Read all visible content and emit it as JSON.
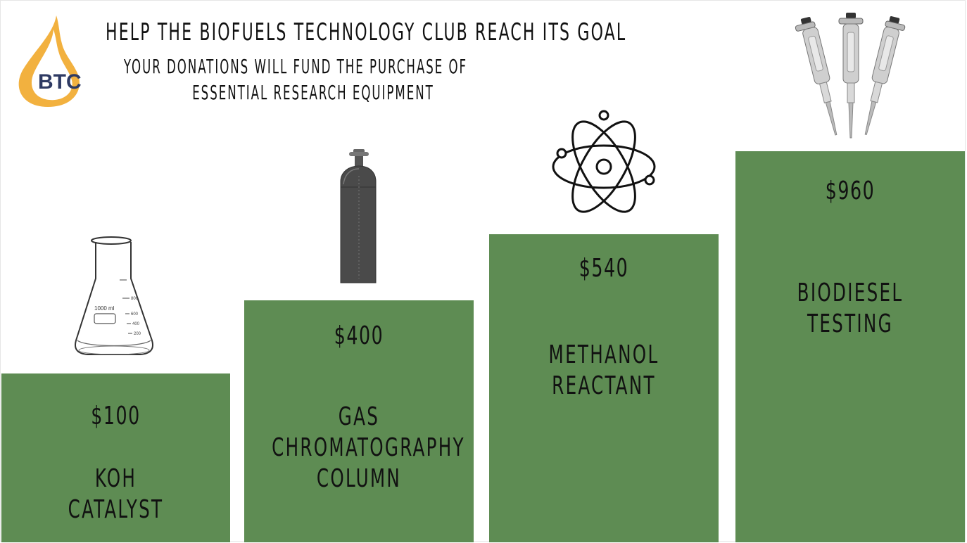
{
  "header": {
    "title": "HELP THE BIOFUELS TECHNOLOGY CLUB REACH ITS GOAL",
    "subtitle_line1": "YOUR DONATIONS WILL FUND THE PURCHASE OF",
    "subtitle_line2": "ESSENTIAL RESEARCH EQUIPMENT"
  },
  "logo": {
    "text": "BTC",
    "icon": "oil-drop-logo",
    "colors": {
      "drop": "#f2b13f",
      "text": "#2e3a63"
    }
  },
  "tiers": [
    {
      "price": "$100",
      "label_lines": [
        "KOH",
        "CATALYST"
      ],
      "icon": "erlenmeyer-flask-icon"
    },
    {
      "price": "$400",
      "label_lines": [
        "GAS",
        "CHROMATOGRAPHY",
        "COLUMN"
      ],
      "icon": "gas-cylinder-icon"
    },
    {
      "price": "$540",
      "label_lines": [
        "METHANOL",
        "REACTANT"
      ],
      "icon": "atom-icon"
    },
    {
      "price": "$960",
      "label_lines": [
        "BIODIESEL",
        "TESTING"
      ],
      "icon": "pipettes-icon"
    }
  ],
  "flask_markings": {
    "volume": "1000 ml",
    "ticks": [
      "800",
      "600",
      "400",
      "200"
    ]
  },
  "colors": {
    "tier_fill": "#5e8c53",
    "background": "#ffffff",
    "text": "#111111"
  }
}
